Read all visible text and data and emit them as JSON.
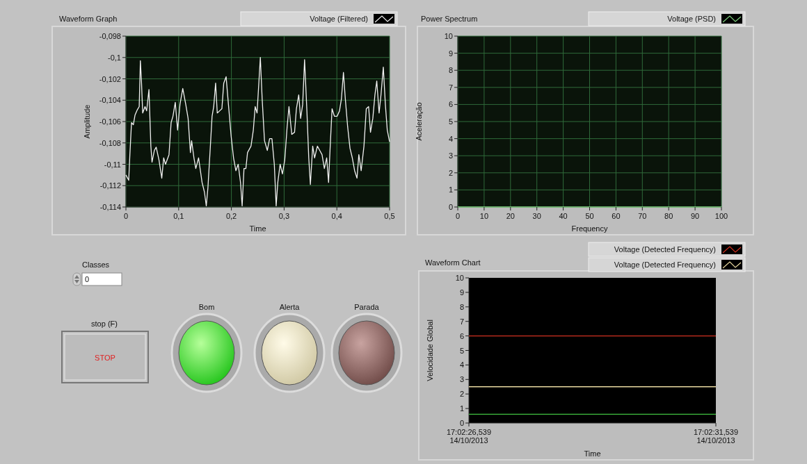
{
  "chart_data": [
    {
      "type": "line",
      "title": "Waveform Graph",
      "xlabel": "Time",
      "ylabel": "Amplitude",
      "xlim": [
        0,
        0.5
      ],
      "ylim": [
        -0.114,
        -0.098
      ],
      "xticks": [
        0,
        {
          "value": 0.1,
          "label": "0,1"
        },
        {
          "value": 0.2,
          "label": "0,2"
        },
        {
          "value": 0.3,
          "label": "0,3"
        },
        {
          "value": 0.4,
          "label": "0,4"
        },
        {
          "value": 0.5,
          "label": "0,5"
        }
      ],
      "yticks": [
        {
          "value": -0.114,
          "label": "-0,114"
        },
        {
          "value": -0.112,
          "label": "-0,112"
        },
        {
          "value": -0.11,
          "label": "-0,11"
        },
        {
          "value": -0.108,
          "label": "-0,108"
        },
        {
          "value": -0.106,
          "label": "-0,106"
        },
        {
          "value": -0.104,
          "label": "-0,104"
        },
        {
          "value": -0.102,
          "label": "-0,102"
        },
        {
          "value": -0.1,
          "label": "-0,1"
        },
        {
          "value": -0.098,
          "label": "-0,098"
        }
      ],
      "grid": true,
      "legend": "top right",
      "series": [
        {
          "name": "Voltage (Filtered)",
          "color": "#f0f0f0",
          "x": [
            0,
            0.0053,
            0.0075,
            0.0106,
            0.0141,
            0.0172,
            0.0216,
            0.0252,
            0.0274,
            0.0296,
            0.0318,
            0.0362,
            0.0393,
            0.0437,
            0.0473,
            0.0495,
            0.0539,
            0.0574,
            0.0627,
            0.068,
            0.0716,
            0.0751,
            0.0817,
            0.0857,
            0.0892,
            0.0936,
            0.098,
            0.1025,
            0.1078,
            0.1135,
            0.1179,
            0.1223,
            0.1246,
            0.129,
            0.1325,
            0.1378,
            0.1444,
            0.1489,
            0.1524,
            0.1555,
            0.1599,
            0.1634,
            0.1665,
            0.1701,
            0.1732,
            0.1776,
            0.182,
            0.1855,
            0.19,
            0.1944,
            0.1996,
            0.2041,
            0.2085,
            0.2129,
            0.2173,
            0.2204,
            0.2239,
            0.2275,
            0.2306,
            0.2372,
            0.2416,
            0.2451,
            0.2487,
            0.2549,
            0.2584,
            0.2628,
            0.2681,
            0.2725,
            0.2769,
            0.2814,
            0.2849,
            0.288,
            0.2924,
            0.2968,
            0.3012,
            0.3057,
            0.3092,
            0.3145,
            0.3198,
            0.3233,
            0.3277,
            0.3313,
            0.3352,
            0.3388,
            0.3432,
            0.3467,
            0.3498,
            0.3542,
            0.3578,
            0.3631,
            0.3675,
            0.3719,
            0.3763,
            0.3807,
            0.3843,
            0.3874,
            0.3909,
            0.3953,
            0.4006,
            0.405,
            0.4086,
            0.4125,
            0.4161,
            0.4205,
            0.4249,
            0.4293,
            0.4337,
            0.4382,
            0.4417,
            0.4461,
            0.4514,
            0.4558,
            0.4602,
            0.4638,
            0.4682,
            0.4722,
            0.4757,
            0.4801,
            0.4837,
            0.4881,
            0.492,
            0.4956,
            0.5
          ],
          "values": [
            -0.111,
            -0.1115,
            -0.1091,
            -0.1061,
            -0.1063,
            -0.1054,
            -0.1049,
            -0.1046,
            -0.1003,
            -0.1024,
            -0.1052,
            -0.1046,
            -0.105,
            -0.103,
            -0.1083,
            -0.1098,
            -0.1087,
            -0.1084,
            -0.1096,
            -0.1113,
            -0.1094,
            -0.11,
            -0.1091,
            -0.1061,
            -0.1055,
            -0.1042,
            -0.1068,
            -0.1044,
            -0.1029,
            -0.1044,
            -0.1057,
            -0.1089,
            -0.1078,
            -0.1094,
            -0.1104,
            -0.1094,
            -0.1117,
            -0.1126,
            -0.1139,
            -0.1122,
            -0.1085,
            -0.1055,
            -0.1046,
            -0.1024,
            -0.1052,
            -0.105,
            -0.1048,
            -0.1024,
            -0.1018,
            -0.1044,
            -0.1074,
            -0.1094,
            -0.1106,
            -0.11,
            -0.1117,
            -0.1139,
            -0.1104,
            -0.1104,
            -0.1089,
            -0.1083,
            -0.1068,
            -0.1046,
            -0.1052,
            -0.1,
            -0.1039,
            -0.1078,
            -0.1087,
            -0.1076,
            -0.1076,
            -0.11,
            -0.1139,
            -0.1117,
            -0.11,
            -0.1109,
            -0.1096,
            -0.1065,
            -0.1046,
            -0.1072,
            -0.107,
            -0.1048,
            -0.1035,
            -0.1057,
            -0.1044,
            -0.1002,
            -0.105,
            -0.1094,
            -0.1119,
            -0.1083,
            -0.1094,
            -0.1083,
            -0.1087,
            -0.1091,
            -0.1104,
            -0.1094,
            -0.1117,
            -0.1083,
            -0.1048,
            -0.1055,
            -0.1055,
            -0.105,
            -0.1039,
            -0.1014,
            -0.1039,
            -0.1065,
            -0.1085,
            -0.1094,
            -0.1106,
            -0.1113,
            -0.1091,
            -0.1106,
            -0.1083,
            -0.1048,
            -0.1046,
            -0.107,
            -0.1057,
            -0.1035,
            -0.1022,
            -0.1052,
            -0.1035,
            -0.1009,
            -0.1044,
            -0.1068,
            -0.1079
          ]
        }
      ]
    },
    {
      "type": "line",
      "title": "Power Spectrum",
      "xlabel": "Frequency",
      "ylabel": "Aceleração",
      "xlim": [
        0,
        100
      ],
      "ylim": [
        0,
        10
      ],
      "xticks": [
        0,
        10,
        20,
        30,
        40,
        50,
        60,
        70,
        80,
        90,
        100
      ],
      "yticks": [
        0,
        1,
        2,
        3,
        4,
        5,
        6,
        7,
        8,
        9,
        10
      ],
      "grid": true,
      "legend": "top right",
      "series": [
        {
          "name": "Voltage (PSD)",
          "color": "#7fd07f",
          "x": [
            0,
            100
          ],
          "values": [
            0,
            0
          ]
        }
      ]
    },
    {
      "type": "line",
      "title": "Waveform Chart",
      "xlabel": "Time",
      "ylabel": "Velocidade Global",
      "xlim": [
        "2013-10-14T17:02:26.539",
        "2013-10-14T17:02:31.539"
      ],
      "ylim": [
        0,
        10
      ],
      "xticks": [
        {
          "value": "2013-10-14T17:02:26.539",
          "label": "17:02:26,539\n14/10/2013"
        },
        {
          "value": "2013-10-14T17:02:31.539",
          "label": "17:02:31,539\n14/10/2013"
        }
      ],
      "yticks": [
        0,
        1,
        2,
        3,
        4,
        5,
        6,
        7,
        8,
        9,
        10
      ],
      "legend": "top right",
      "series": [
        {
          "name": "Voltage (Detected Frequency)",
          "color": "#d03020",
          "x": [
            "2013-10-14T17:02:26.539",
            "2013-10-14T17:02:31.539"
          ],
          "values": [
            6,
            6
          ]
        },
        {
          "name": "Voltage (Detected Frequency)",
          "color": "#e8d8a0",
          "x": [
            "2013-10-14T17:02:26.539",
            "2013-10-14T17:02:31.539"
          ],
          "values": [
            2.5,
            2.5
          ]
        },
        {
          "color": "#40c040",
          "x": [
            "2013-10-14T17:02:26.539",
            "2013-10-14T17:02:31.539"
          ],
          "values": [
            0.6,
            0.6
          ]
        }
      ]
    },
    {
      "type": "other",
      "annotations": [
        "Classes",
        "0",
        "stop (F)",
        "STOP",
        "Bom",
        "Alerta",
        "Parada"
      ]
    }
  ]
}
